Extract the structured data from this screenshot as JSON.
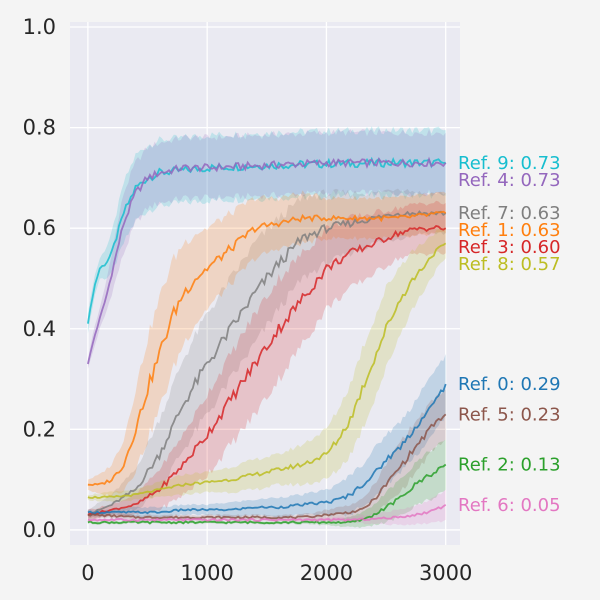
{
  "chart_data": {
    "type": "line",
    "title": "",
    "xlabel": "",
    "ylabel": "",
    "xlim": [
      -150,
      3120
    ],
    "ylim": [
      -0.03,
      1.01
    ],
    "xticks": [
      0,
      1000,
      2000,
      3000
    ],
    "xtick_labels": [
      "0",
      "1000",
      "2000",
      "3000"
    ],
    "yticks": [
      0.0,
      0.2,
      0.4,
      0.6,
      0.8,
      1.0
    ],
    "ytick_labels": [
      "0.0",
      "0.2",
      "0.4",
      "0.6",
      "0.8",
      "1.0"
    ],
    "grid": true,
    "legend": "end-of-line labels on the right",
    "series": [
      {
        "name": "Ref. 9",
        "end_label": "Ref. 9: 0.73",
        "color": "#17becf",
        "x": [
          0,
          50,
          100,
          150,
          200,
          250,
          300,
          400,
          500,
          600,
          800,
          1000,
          1500,
          2000,
          2500,
          3000
        ],
        "y": [
          0.41,
          0.48,
          0.52,
          0.53,
          0.55,
          0.59,
          0.63,
          0.68,
          0.7,
          0.71,
          0.715,
          0.72,
          0.725,
          0.728,
          0.73,
          0.73
        ],
        "spread": [
          0.02,
          0.02,
          0.02,
          0.03,
          0.04,
          0.05,
          0.06,
          0.065,
          0.065,
          0.065,
          0.065,
          0.065,
          0.065,
          0.065,
          0.065,
          0.065
        ]
      },
      {
        "name": "Ref. 4",
        "end_label": "Ref. 4: 0.73",
        "color": "#9467bd",
        "x": [
          0,
          50,
          100,
          150,
          200,
          250,
          300,
          400,
          500,
          600,
          800,
          1000,
          1500,
          2000,
          2500,
          3000
        ],
        "y": [
          0.33,
          0.38,
          0.42,
          0.46,
          0.51,
          0.56,
          0.61,
          0.67,
          0.7,
          0.71,
          0.72,
          0.72,
          0.725,
          0.73,
          0.73,
          0.73
        ],
        "spread": [
          0.01,
          0.02,
          0.02,
          0.03,
          0.04,
          0.05,
          0.06,
          0.06,
          0.06,
          0.06,
          0.06,
          0.06,
          0.06,
          0.06,
          0.06,
          0.06
        ]
      },
      {
        "name": "Ref. 7",
        "end_label": "Ref. 7: 0.63",
        "color": "#7f7f7f",
        "x": [
          0,
          200,
          400,
          600,
          800,
          1000,
          1200,
          1400,
          1600,
          1800,
          2000,
          2200,
          2400,
          2600,
          2800,
          3000
        ],
        "y": [
          0.03,
          0.05,
          0.08,
          0.15,
          0.25,
          0.33,
          0.4,
          0.47,
          0.53,
          0.58,
          0.6,
          0.61,
          0.62,
          0.63,
          0.63,
          0.63
        ],
        "spread": [
          0.01,
          0.02,
          0.04,
          0.07,
          0.09,
          0.1,
          0.1,
          0.1,
          0.09,
          0.08,
          0.07,
          0.06,
          0.05,
          0.05,
          0.04,
          0.04
        ]
      },
      {
        "name": "Ref. 1",
        "end_label": "Ref. 1: 0.63",
        "color": "#ff7f0e",
        "x": [
          0,
          100,
          200,
          300,
          400,
          500,
          600,
          700,
          800,
          900,
          1000,
          1200,
          1400,
          1600,
          1800,
          2000,
          2200,
          2400,
          2600,
          2800,
          3000
        ],
        "y": [
          0.09,
          0.09,
          0.1,
          0.13,
          0.2,
          0.28,
          0.35,
          0.42,
          0.47,
          0.5,
          0.52,
          0.56,
          0.6,
          0.61,
          0.62,
          0.62,
          0.62,
          0.62,
          0.62,
          0.625,
          0.63
        ],
        "spread": [
          0.01,
          0.02,
          0.03,
          0.05,
          0.08,
          0.1,
          0.11,
          0.11,
          0.1,
          0.09,
          0.08,
          0.07,
          0.06,
          0.05,
          0.05,
          0.04,
          0.04,
          0.04,
          0.04,
          0.04,
          0.04
        ]
      },
      {
        "name": "Ref. 3",
        "end_label": "Ref. 3: 0.60",
        "color": "#d62728",
        "x": [
          0,
          200,
          400,
          600,
          800,
          1000,
          1200,
          1400,
          1600,
          1800,
          2000,
          2200,
          2400,
          2600,
          2800,
          3000
        ],
        "y": [
          0.03,
          0.04,
          0.05,
          0.08,
          0.13,
          0.19,
          0.26,
          0.33,
          0.4,
          0.46,
          0.52,
          0.55,
          0.57,
          0.59,
          0.6,
          0.6
        ],
        "spread": [
          0.01,
          0.01,
          0.02,
          0.04,
          0.06,
          0.08,
          0.09,
          0.1,
          0.1,
          0.09,
          0.08,
          0.07,
          0.06,
          0.05,
          0.05,
          0.05
        ]
      },
      {
        "name": "Ref. 8",
        "end_label": "Ref. 8: 0.57",
        "color": "#bcbd22",
        "x": [
          0,
          200,
          400,
          600,
          800,
          1000,
          1200,
          1400,
          1600,
          1800,
          2000,
          2100,
          2200,
          2300,
          2400,
          2500,
          2600,
          2700,
          2800,
          2900,
          3000
        ],
        "y": [
          0.065,
          0.065,
          0.07,
          0.08,
          0.09,
          0.095,
          0.1,
          0.11,
          0.12,
          0.13,
          0.15,
          0.18,
          0.22,
          0.28,
          0.34,
          0.4,
          0.45,
          0.49,
          0.52,
          0.55,
          0.57
        ],
        "spread": [
          0.005,
          0.01,
          0.01,
          0.015,
          0.02,
          0.02,
          0.025,
          0.03,
          0.03,
          0.04,
          0.05,
          0.06,
          0.07,
          0.08,
          0.08,
          0.08,
          0.07,
          0.06,
          0.05,
          0.04,
          0.03
        ]
      },
      {
        "name": "Ref. 0",
        "end_label": "Ref. 0: 0.29",
        "color": "#1f77b4",
        "x": [
          0,
          200,
          400,
          600,
          800,
          1000,
          1200,
          1400,
          1600,
          1800,
          2000,
          2100,
          2200,
          2300,
          2400,
          2500,
          2600,
          2700,
          2800,
          2900,
          3000
        ],
        "y": [
          0.035,
          0.035,
          0.035,
          0.035,
          0.04,
          0.04,
          0.04,
          0.045,
          0.045,
          0.05,
          0.055,
          0.06,
          0.07,
          0.09,
          0.11,
          0.14,
          0.16,
          0.19,
          0.22,
          0.25,
          0.29
        ],
        "spread": [
          0.005,
          0.005,
          0.01,
          0.01,
          0.01,
          0.01,
          0.015,
          0.015,
          0.02,
          0.02,
          0.025,
          0.03,
          0.04,
          0.04,
          0.05,
          0.05,
          0.05,
          0.05,
          0.06,
          0.06,
          0.06
        ]
      },
      {
        "name": "Ref. 5",
        "end_label": "Ref. 5: 0.23",
        "color": "#8c564b",
        "x": [
          0,
          200,
          400,
          600,
          800,
          1000,
          1200,
          1400,
          1600,
          1800,
          2000,
          2200,
          2300,
          2400,
          2500,
          2600,
          2700,
          2800,
          2900,
          3000
        ],
        "y": [
          0.03,
          0.028,
          0.025,
          0.025,
          0.025,
          0.025,
          0.025,
          0.025,
          0.025,
          0.025,
          0.03,
          0.035,
          0.04,
          0.06,
          0.09,
          0.12,
          0.15,
          0.18,
          0.21,
          0.23
        ],
        "spread": [
          0.005,
          0.005,
          0.005,
          0.005,
          0.005,
          0.005,
          0.005,
          0.005,
          0.005,
          0.005,
          0.01,
          0.015,
          0.02,
          0.03,
          0.04,
          0.05,
          0.05,
          0.05,
          0.05,
          0.05
        ]
      },
      {
        "name": "Ref. 2",
        "end_label": "Ref. 2: 0.13",
        "color": "#2ca02c",
        "x": [
          0,
          400,
          800,
          1200,
          1600,
          2000,
          2200,
          2300,
          2400,
          2500,
          2600,
          2700,
          2800,
          2900,
          3000
        ],
        "y": [
          0.015,
          0.015,
          0.015,
          0.015,
          0.015,
          0.015,
          0.015,
          0.02,
          0.03,
          0.045,
          0.06,
          0.08,
          0.1,
          0.115,
          0.13
        ],
        "spread": [
          0.003,
          0.003,
          0.003,
          0.003,
          0.003,
          0.005,
          0.01,
          0.015,
          0.02,
          0.03,
          0.035,
          0.04,
          0.045,
          0.05,
          0.05
        ]
      },
      {
        "name": "Ref. 6",
        "end_label": "Ref. 6: 0.05",
        "color": "#e377c2",
        "x": [
          0,
          400,
          800,
          1200,
          1600,
          2000,
          2200,
          2400,
          2600,
          2800,
          2900,
          3000
        ],
        "y": [
          0.02,
          0.02,
          0.02,
          0.02,
          0.02,
          0.02,
          0.02,
          0.022,
          0.025,
          0.032,
          0.04,
          0.05
        ],
        "spread": [
          0.003,
          0.003,
          0.003,
          0.003,
          0.003,
          0.004,
          0.006,
          0.01,
          0.015,
          0.02,
          0.025,
          0.03
        ]
      }
    ],
    "end_label_order": [
      "Ref. 9",
      "Ref. 4",
      "Ref. 7",
      "Ref. 1",
      "Ref. 3",
      "Ref. 8",
      "Ref. 0",
      "Ref. 5",
      "Ref. 2",
      "Ref. 6"
    ]
  }
}
